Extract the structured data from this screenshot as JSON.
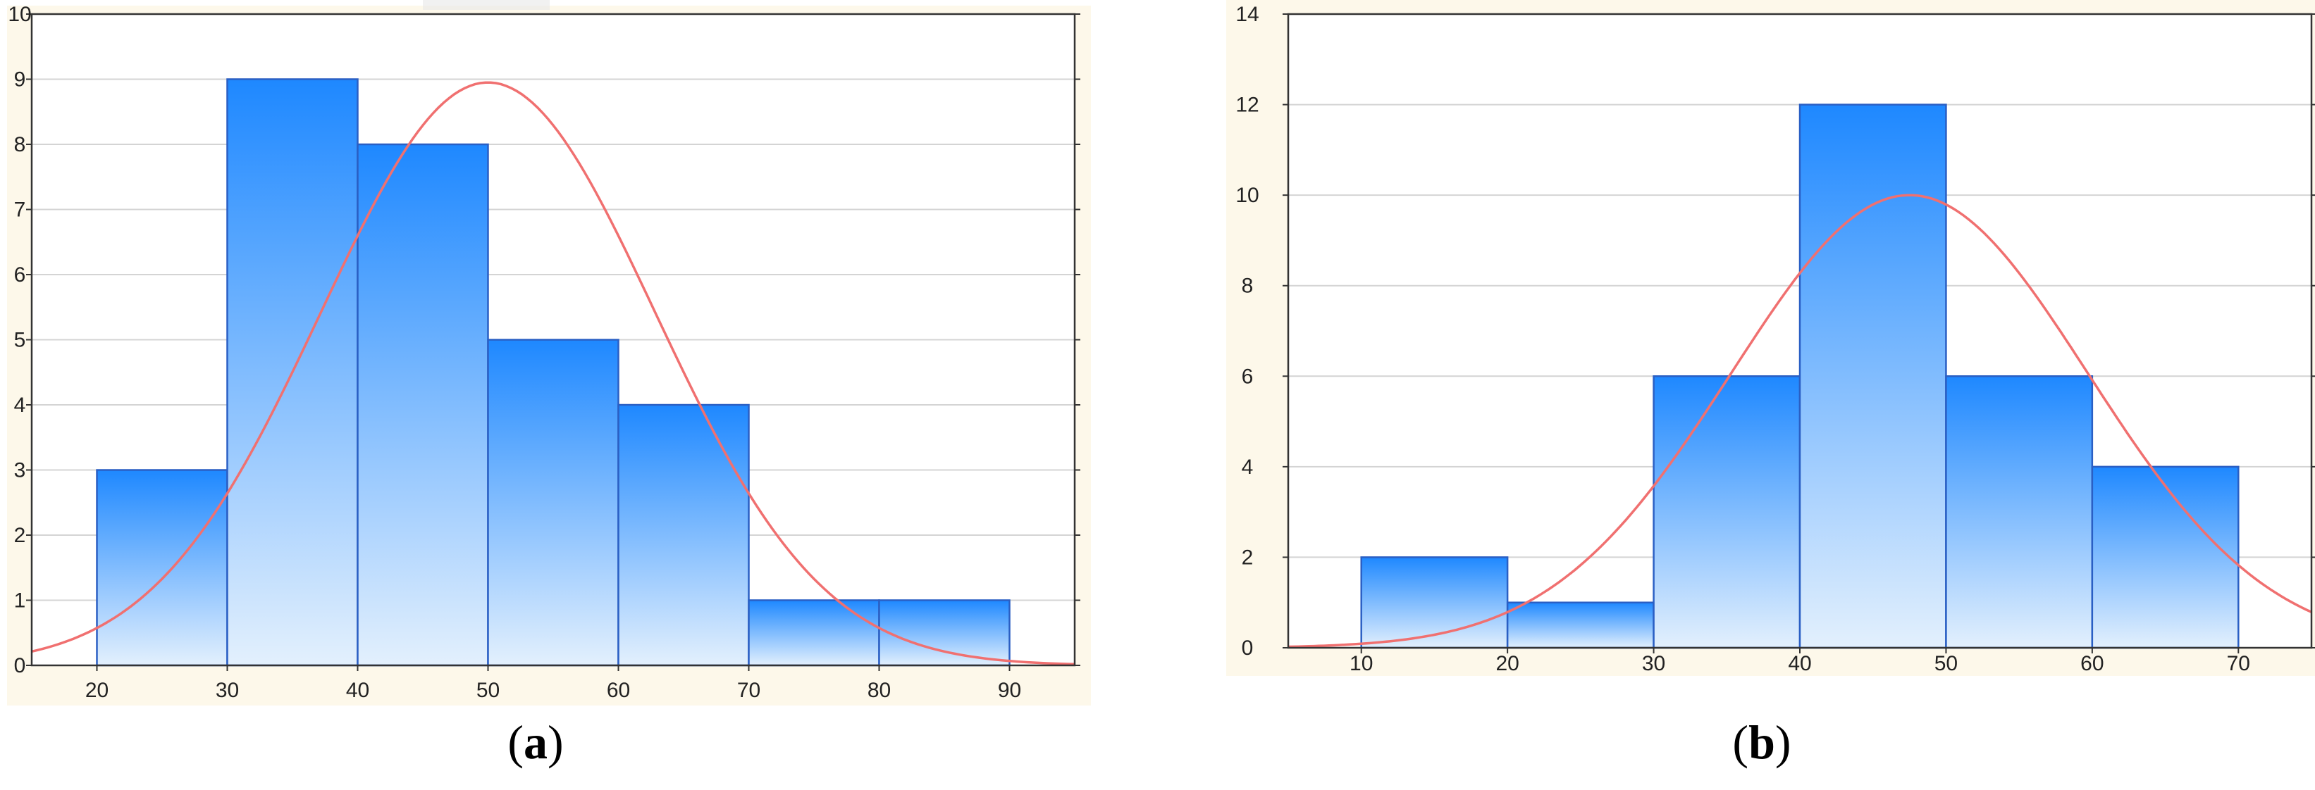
{
  "figure": {
    "background_color": "#fdf8ea",
    "plot_background": "#ffffff",
    "bar_fill_top": "#1e88ff",
    "bar_fill_bottom": "#e3f0fd",
    "bar_stroke": "#2a5fc4",
    "curve_color": "#f07070",
    "grid_color": "#d4d4d4"
  },
  "chart_data": [
    {
      "type": "bar",
      "panel_label": "a",
      "title": "",
      "bins": [
        [
          20,
          30
        ],
        [
          30,
          40
        ],
        [
          40,
          50
        ],
        [
          50,
          60
        ],
        [
          60,
          70
        ],
        [
          70,
          80
        ],
        [
          80,
          90
        ]
      ],
      "values": [
        3,
        9,
        8,
        5,
        4,
        1,
        1
      ],
      "normal_curve": {
        "mean": 50,
        "sd": 12.8,
        "peak": 8.95
      },
      "xlim": [
        15,
        95
      ],
      "ylim": [
        0,
        10
      ],
      "x_ticks": [
        20,
        30,
        40,
        50,
        60,
        70,
        80,
        90
      ],
      "y_ticks": [
        0,
        1,
        2,
        3,
        4,
        5,
        6,
        7,
        8,
        9,
        10
      ],
      "grid": true,
      "xlabel": "",
      "ylabel": ""
    },
    {
      "type": "bar",
      "panel_label": "b",
      "title": "",
      "bins": [
        [
          10,
          20
        ],
        [
          20,
          30
        ],
        [
          30,
          40
        ],
        [
          40,
          50
        ],
        [
          50,
          60
        ],
        [
          60,
          70
        ]
      ],
      "values": [
        2,
        1,
        6,
        12,
        6,
        4
      ],
      "normal_curve": {
        "mean": 47.5,
        "sd": 12.2,
        "peak": 10
      },
      "xlim": [
        5,
        75
      ],
      "ylim": [
        0,
        14
      ],
      "x_ticks": [
        10,
        20,
        30,
        40,
        50,
        60,
        70
      ],
      "y_ticks": [
        0,
        2,
        4,
        6,
        8,
        10,
        12,
        14
      ],
      "grid": true,
      "xlabel": "",
      "ylabel": ""
    }
  ],
  "captions": [
    {
      "open": "(",
      "label": "a",
      "close": ")"
    },
    {
      "open": "(",
      "label": "b",
      "close": ")"
    }
  ]
}
